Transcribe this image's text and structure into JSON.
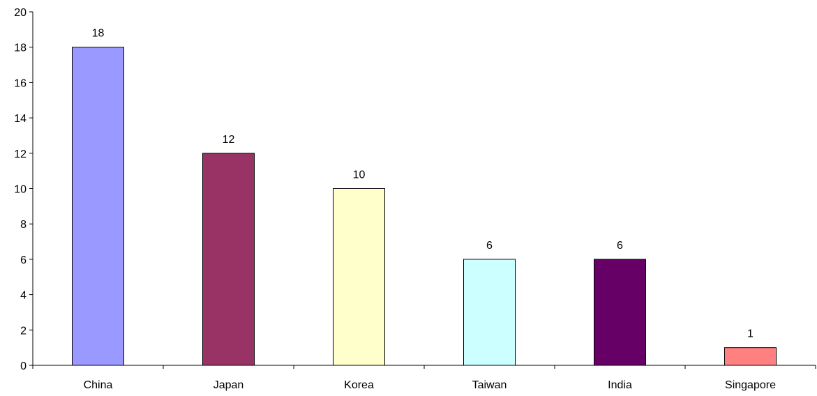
{
  "chart_data": {
    "type": "bar",
    "title": "",
    "xlabel": "",
    "ylabel": "",
    "categories": [
      "China",
      "Japan",
      "Korea",
      "Taiwan",
      "India",
      "Singapore"
    ],
    "values": [
      18,
      12,
      10,
      6,
      6,
      1
    ],
    "data_labels": [
      "18",
      "12",
      "10",
      "6",
      "6",
      "1"
    ],
    "colors": [
      "#9999ff",
      "#993366",
      "#ffffcc",
      "#ccffff",
      "#660066",
      "#ff8080"
    ],
    "ylim": [
      0,
      20
    ],
    "yticks": [
      0,
      2,
      4,
      6,
      8,
      10,
      12,
      14,
      16,
      18,
      20
    ],
    "ytick_labels": [
      "0",
      "2",
      "4",
      "6",
      "8",
      "10",
      "12",
      "14",
      "16",
      "18",
      "20"
    ],
    "grid": false,
    "legend": "none"
  }
}
